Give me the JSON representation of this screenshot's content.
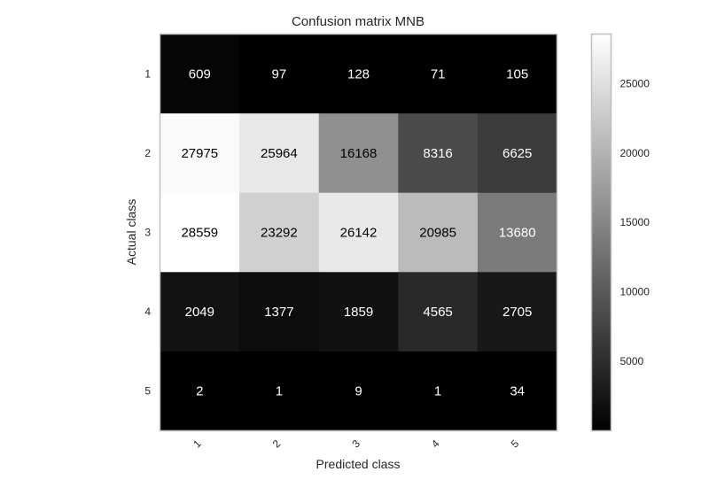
{
  "chart_data": {
    "type": "heatmap",
    "title": "Confusion matrix MNB",
    "xlabel": "Predicted class",
    "ylabel": "Actual class",
    "x_tick_labels": [
      "1",
      "2",
      "3",
      "4",
      "5"
    ],
    "y_tick_labels": [
      "1",
      "2",
      "3",
      "4",
      "5"
    ],
    "values": [
      [
        609,
        97,
        128,
        71,
        105
      ],
      [
        27975,
        25964,
        16168,
        8316,
        6625
      ],
      [
        28559,
        23292,
        26142,
        20985,
        13680
      ],
      [
        2049,
        1377,
        1859,
        4565,
        2705
      ],
      [
        2,
        1,
        9,
        1,
        34
      ]
    ],
    "colormap": "gray",
    "color_range": [
      1,
      28559
    ],
    "colorbar_ticks": [
      5000,
      10000,
      15000,
      20000,
      25000
    ],
    "colorbar_tick_labels": [
      "5000",
      "10000",
      "15000",
      "20000",
      "25000"
    ],
    "grid": false
  }
}
